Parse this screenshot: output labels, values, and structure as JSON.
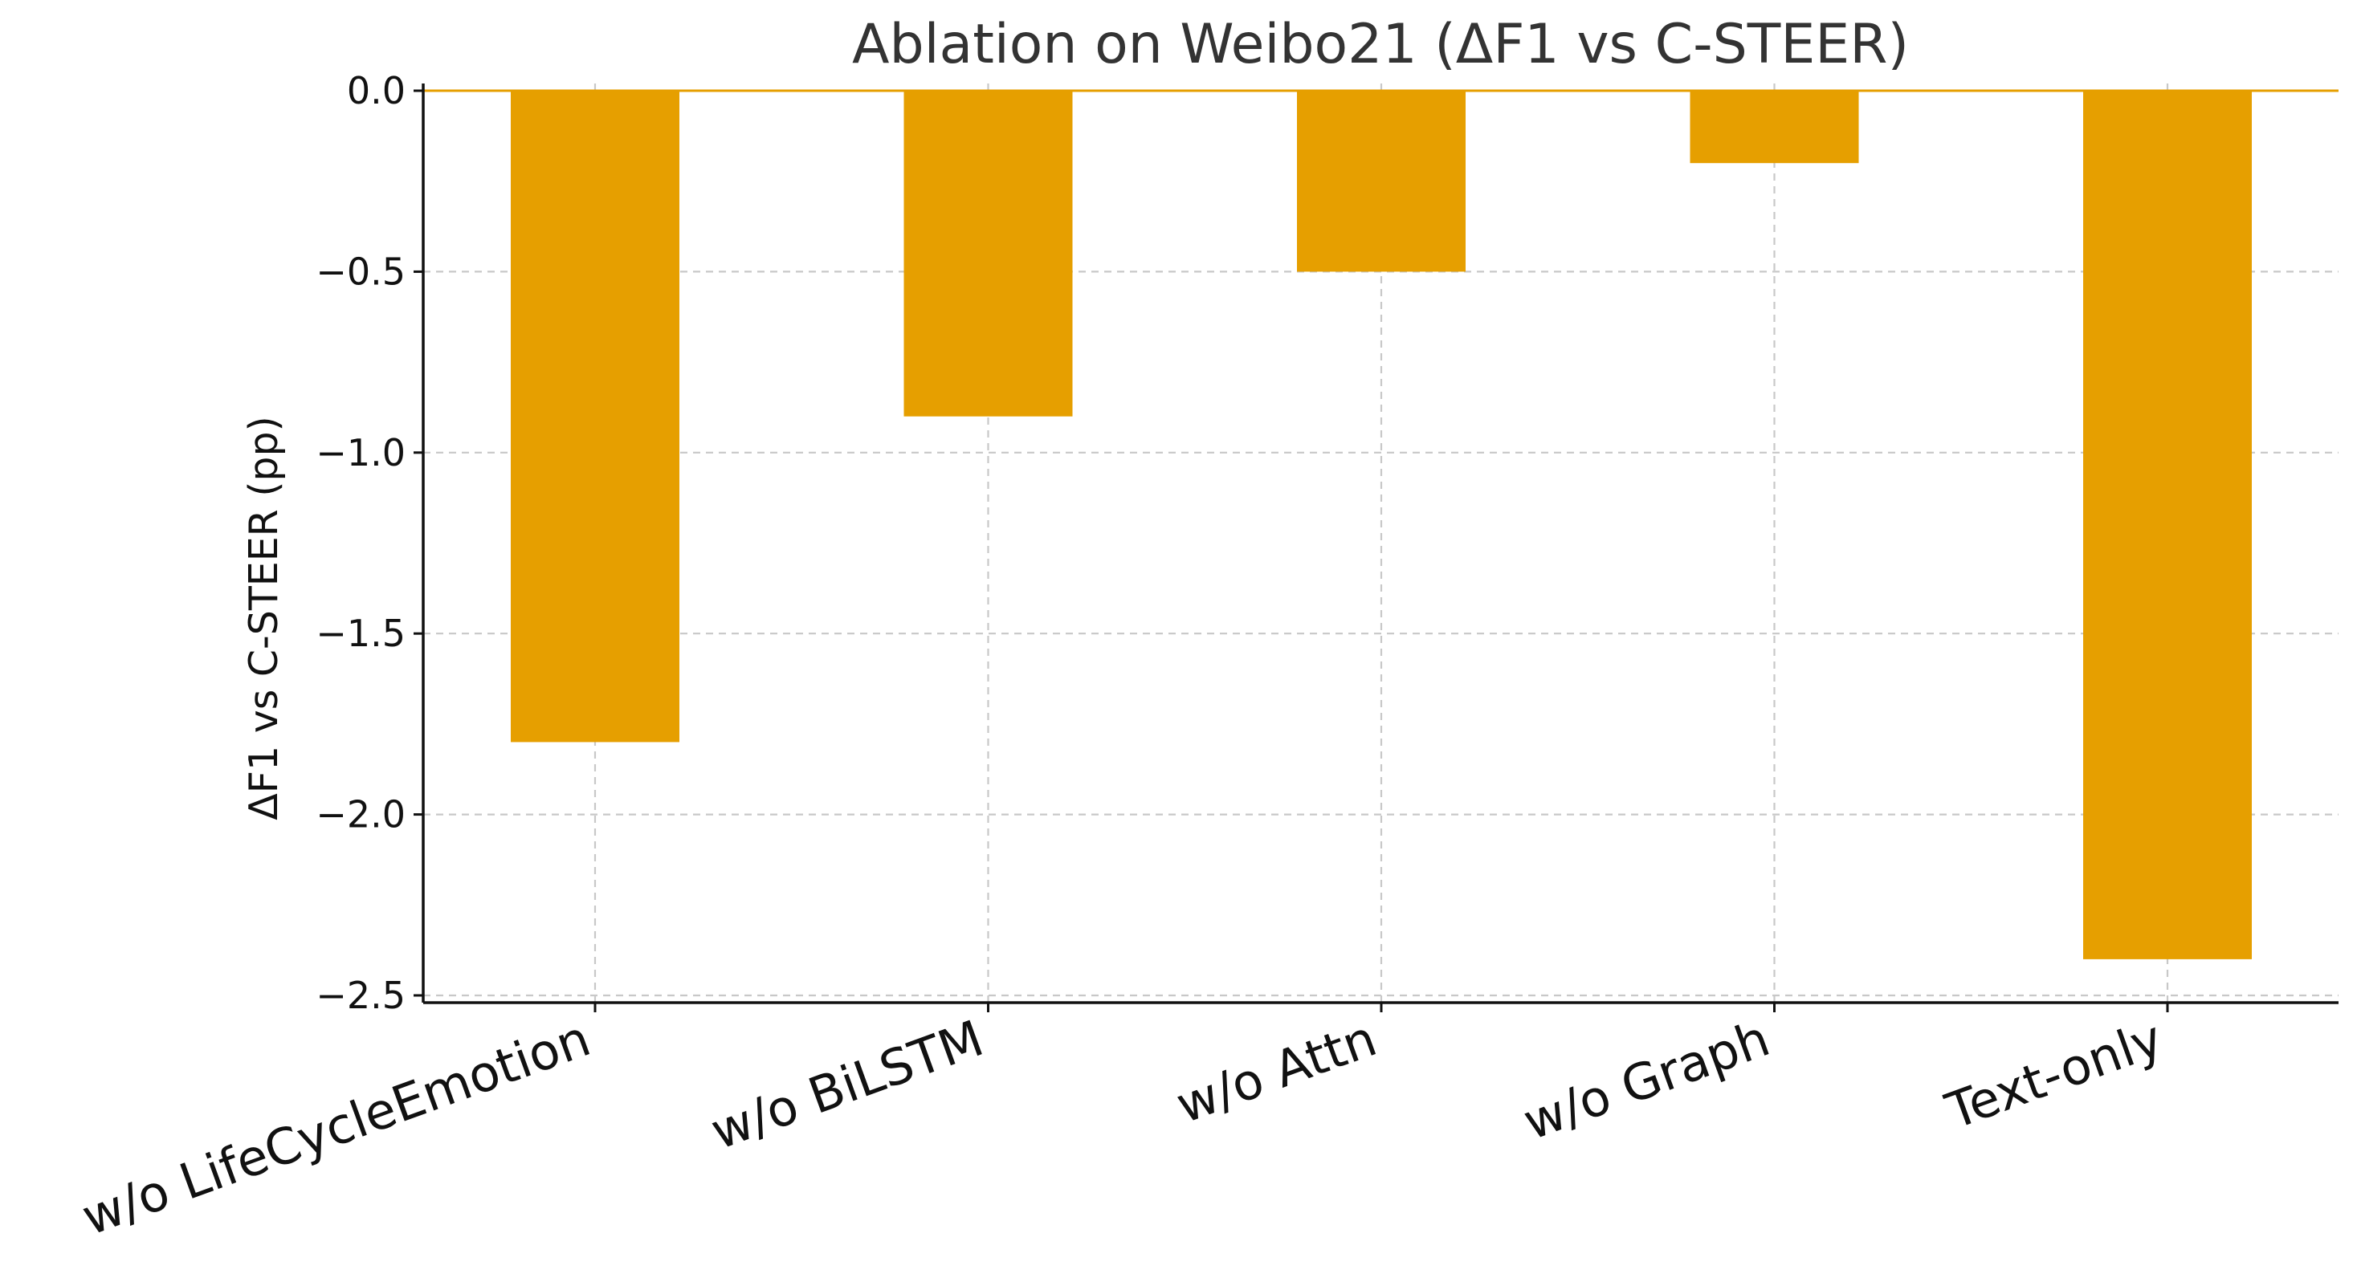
{
  "chart_data": {
    "type": "bar",
    "title": "Ablation on Weibo21 (ΔF1 vs C-STEER)",
    "xlabel": "",
    "ylabel": "ΔF1 vs C-STEER (pp)",
    "categories": [
      "w/o LifeCycleEmotion",
      "w/o BiLSTM",
      "w/o Attn",
      "w/o Graph",
      "Text-only"
    ],
    "values": [
      -1.8,
      -0.9,
      -0.5,
      -0.2,
      -2.4
    ],
    "ylim": [
      -2.52,
      0.02
    ],
    "yticks": [
      0.0,
      -0.5,
      -1.0,
      -1.5,
      -2.0,
      -2.5
    ],
    "ytick_labels": [
      "0.0",
      "−0.5",
      "−1.0",
      "−1.5",
      "−2.0",
      "−2.5"
    ],
    "grid": true,
    "colors": {
      "bar": "#E69F00",
      "zero_line": "#E69F00"
    }
  }
}
